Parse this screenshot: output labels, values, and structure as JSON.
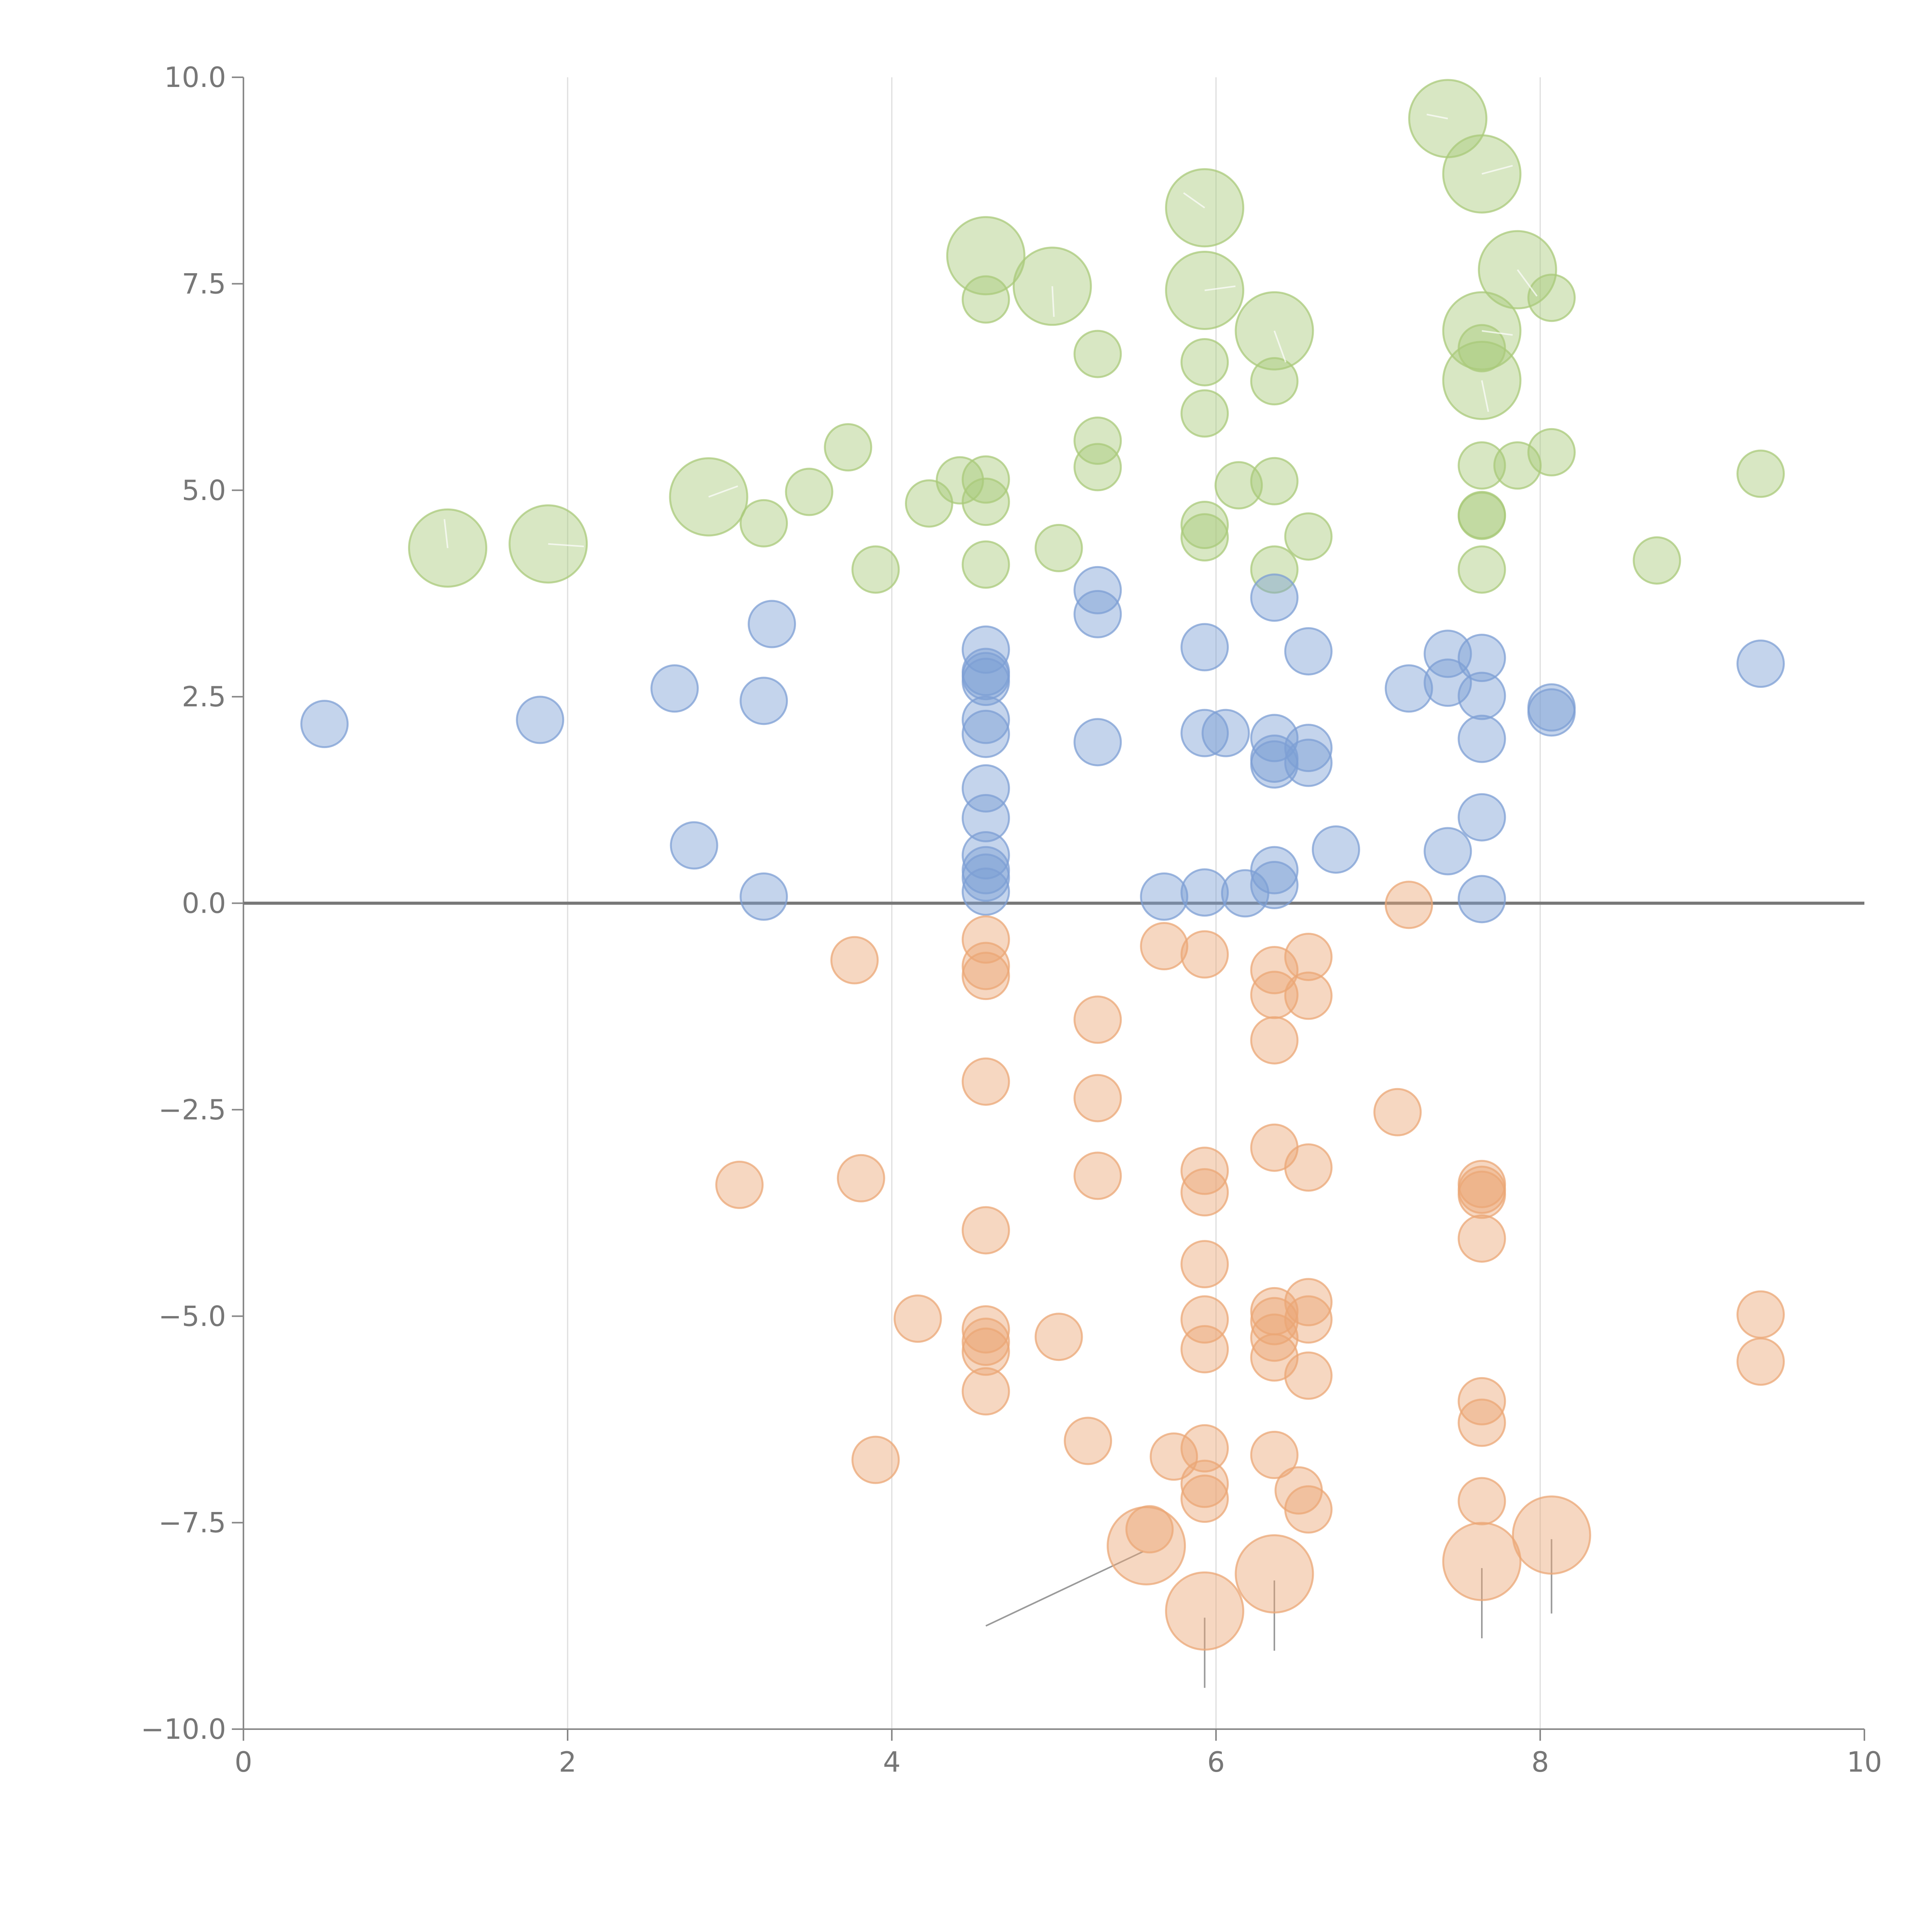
{
  "chart_data": {
    "type": "scatter",
    "title": "",
    "xlabel": "",
    "ylabel": "",
    "xlim": [
      0,
      10
    ],
    "ylim": [
      -10,
      10
    ],
    "x_ticks": [
      0,
      2,
      4,
      6,
      8,
      10
    ],
    "y_ticks": [
      10,
      7.5,
      5,
      2.5,
      0,
      -2.5,
      -5,
      -7.5,
      -10
    ],
    "x_tick_labels": [
      "0",
      "2",
      "4",
      "6",
      "8",
      "10"
    ],
    "y_tick_labels": [
      "10.0",
      "7.5",
      "5.0",
      "2.5",
      "0.0",
      "−2.5",
      "−5.0",
      "−7.5",
      "−10.0"
    ],
    "grid": "vertical",
    "reference_line_y": 0,
    "series": [
      {
        "name": "green",
        "color": "#a9c97a",
        "points": [
          [
            1.26,
            4.3,
            2
          ],
          [
            1.88,
            4.35,
            2
          ],
          [
            2.87,
            4.92,
            2
          ],
          [
            3.21,
            4.6,
            1
          ],
          [
            3.49,
            4.98,
            1
          ],
          [
            3.73,
            5.52,
            1
          ],
          [
            3.9,
            4.04,
            1
          ],
          [
            4.23,
            4.84,
            1
          ],
          [
            4.42,
            5.12,
            1
          ],
          [
            4.58,
            5.13,
            1
          ],
          [
            4.58,
            4.86,
            1
          ],
          [
            4.58,
            4.1,
            1
          ],
          [
            4.58,
            7.31,
            1
          ],
          [
            4.58,
            7.84,
            2
          ],
          [
            4.99,
            7.47,
            2
          ],
          [
            5.03,
            4.3,
            1
          ],
          [
            5.27,
            6.65,
            1
          ],
          [
            5.27,
            5.6,
            1
          ],
          [
            5.27,
            5.28,
            1
          ],
          [
            5.93,
            8.42,
            2
          ],
          [
            5.93,
            7.42,
            2
          ],
          [
            5.93,
            6.55,
            1
          ],
          [
            5.93,
            5.93,
            1
          ],
          [
            5.93,
            4.58,
            1
          ],
          [
            5.93,
            4.43,
            1
          ],
          [
            6.14,
            5.06,
            1
          ],
          [
            6.36,
            6.93,
            2
          ],
          [
            6.36,
            6.32,
            1
          ],
          [
            6.36,
            5.11,
            1
          ],
          [
            6.36,
            4.04,
            1
          ],
          [
            6.57,
            4.44,
            1
          ],
          [
            7.43,
            9.5,
            2
          ],
          [
            7.64,
            8.83,
            2
          ],
          [
            7.64,
            6.93,
            2
          ],
          [
            7.64,
            6.33,
            2
          ],
          [
            7.64,
            6.72,
            1
          ],
          [
            7.64,
            5.3,
            1
          ],
          [
            7.64,
            4.7,
            1
          ],
          [
            7.64,
            4.69,
            1
          ],
          [
            7.64,
            4.04,
            1
          ],
          [
            7.86,
            7.67,
            2
          ],
          [
            7.86,
            5.3,
            1
          ],
          [
            8.07,
            7.33,
            1
          ],
          [
            8.07,
            5.46,
            1
          ],
          [
            8.72,
            4.15,
            1
          ],
          [
            9.36,
            5.2,
            1
          ]
        ]
      },
      {
        "name": "blue",
        "color": "#7d9fd4",
        "points": [
          [
            0.5,
            2.17,
            1
          ],
          [
            1.83,
            2.22,
            1
          ],
          [
            2.66,
            2.6,
            1
          ],
          [
            2.78,
            0.7,
            1
          ],
          [
            3.21,
            2.45,
            1
          ],
          [
            3.21,
            0.08,
            1
          ],
          [
            3.26,
            3.38,
            1
          ],
          [
            4.58,
            3.07,
            1
          ],
          [
            4.58,
            2.8,
            1
          ],
          [
            4.58,
            2.75,
            1
          ],
          [
            4.58,
            2.68,
            1
          ],
          [
            4.58,
            2.22,
            1
          ],
          [
            4.58,
            2.05,
            1
          ],
          [
            4.58,
            1.39,
            1
          ],
          [
            4.58,
            1.03,
            1
          ],
          [
            4.58,
            0.58,
            1
          ],
          [
            4.58,
            0.4,
            1
          ],
          [
            4.58,
            0.31,
            1
          ],
          [
            4.58,
            0.14,
            1
          ],
          [
            5.27,
            3.79,
            1
          ],
          [
            5.27,
            3.5,
            1
          ],
          [
            5.27,
            1.95,
            1
          ],
          [
            5.68,
            0.08,
            1
          ],
          [
            5.93,
            3.1,
            1
          ],
          [
            5.93,
            2.06,
            1
          ],
          [
            5.93,
            0.13,
            1
          ],
          [
            6.06,
            2.06,
            1
          ],
          [
            6.18,
            0.12,
            1
          ],
          [
            6.36,
            3.7,
            1
          ],
          [
            6.36,
            2.0,
            1
          ],
          [
            6.36,
            1.75,
            1
          ],
          [
            6.36,
            1.68,
            1
          ],
          [
            6.36,
            0.4,
            1
          ],
          [
            6.36,
            0.22,
            1
          ],
          [
            6.57,
            3.05,
            1
          ],
          [
            6.57,
            1.88,
            1
          ],
          [
            6.57,
            1.7,
            1
          ],
          [
            6.74,
            0.65,
            1
          ],
          [
            7.19,
            2.6,
            1
          ],
          [
            7.43,
            3.02,
            1
          ],
          [
            7.43,
            2.67,
            1
          ],
          [
            7.43,
            0.63,
            1
          ],
          [
            7.64,
            2.97,
            1
          ],
          [
            7.64,
            2.51,
            1
          ],
          [
            7.64,
            1.99,
            1
          ],
          [
            7.64,
            1.04,
            1
          ],
          [
            7.64,
            0.05,
            1
          ],
          [
            8.07,
            2.37,
            1
          ],
          [
            8.07,
            2.31,
            1
          ],
          [
            9.36,
            2.9,
            1
          ]
        ]
      },
      {
        "name": "orange",
        "color": "#eba775",
        "points": [
          [
            3.06,
            -3.41,
            1
          ],
          [
            3.77,
            -0.69,
            1
          ],
          [
            3.81,
            -3.33,
            1
          ],
          [
            3.9,
            -6.74,
            1
          ],
          [
            4.16,
            -5.03,
            1
          ],
          [
            4.58,
            -0.44,
            1
          ],
          [
            4.58,
            -0.76,
            1
          ],
          [
            4.58,
            -0.88,
            1
          ],
          [
            4.58,
            -2.16,
            1
          ],
          [
            4.58,
            -3.96,
            1
          ],
          [
            4.58,
            -5.16,
            1
          ],
          [
            4.58,
            -5.31,
            1
          ],
          [
            4.58,
            -5.43,
            1
          ],
          [
            4.58,
            -5.91,
            1
          ],
          [
            5.03,
            -5.25,
            1
          ],
          [
            5.21,
            -6.51,
            1
          ],
          [
            5.27,
            -1.41,
            1
          ],
          [
            5.27,
            -2.36,
            1
          ],
          [
            5.27,
            -3.3,
            1
          ],
          [
            5.57,
            -7.78,
            2
          ],
          [
            5.59,
            -7.58,
            1
          ],
          [
            5.68,
            -0.52,
            1
          ],
          [
            5.74,
            -6.7,
            1
          ],
          [
            5.93,
            -0.62,
            1
          ],
          [
            5.93,
            -3.24,
            1
          ],
          [
            5.93,
            -3.5,
            1
          ],
          [
            5.93,
            -4.37,
            1
          ],
          [
            5.93,
            -5.04,
            1
          ],
          [
            5.93,
            -5.4,
            1
          ],
          [
            5.93,
            -6.6,
            1
          ],
          [
            5.93,
            -7.03,
            1
          ],
          [
            5.93,
            -7.21,
            1
          ],
          [
            5.93,
            -8.57,
            2
          ],
          [
            6.36,
            -0.81,
            1
          ],
          [
            6.36,
            -1.11,
            1
          ],
          [
            6.36,
            -1.66,
            1
          ],
          [
            6.36,
            -2.96,
            1
          ],
          [
            6.36,
            -4.94,
            1
          ],
          [
            6.36,
            -5.06,
            1
          ],
          [
            6.36,
            -5.26,
            1
          ],
          [
            6.36,
            -5.5,
            1
          ],
          [
            6.36,
            -6.68,
            1
          ],
          [
            6.36,
            -8.12,
            2
          ],
          [
            6.51,
            -7.11,
            1
          ],
          [
            6.57,
            -0.65,
            1
          ],
          [
            6.57,
            -1.12,
            1
          ],
          [
            6.57,
            -3.2,
            1
          ],
          [
            6.57,
            -4.83,
            1
          ],
          [
            6.57,
            -5.04,
            1
          ],
          [
            6.57,
            -5.72,
            1
          ],
          [
            6.57,
            -7.34,
            1
          ],
          [
            7.12,
            -2.53,
            1
          ],
          [
            7.19,
            -0.02,
            1
          ],
          [
            7.64,
            -3.4,
            1
          ],
          [
            7.64,
            -3.47,
            1
          ],
          [
            7.64,
            -3.53,
            1
          ],
          [
            7.64,
            -4.06,
            1
          ],
          [
            7.64,
            -6.03,
            1
          ],
          [
            7.64,
            -6.29,
            1
          ],
          [
            7.64,
            -7.24,
            1
          ],
          [
            7.64,
            -7.97,
            2
          ],
          [
            8.07,
            -7.65,
            2
          ],
          [
            9.36,
            -4.98,
            1
          ],
          [
            9.36,
            -5.55,
            1
          ]
        ]
      }
    ],
    "size_radius_px": {
      "1": 60,
      "2": 100
    },
    "leader_lines": [
      {
        "from": [
          4.58,
          -8.75
        ],
        "to": [
          5.55,
          -7.85
        ],
        "color": "#9a9a9a"
      },
      {
        "from": [
          5.93,
          -8.65
        ],
        "to": [
          5.93,
          -9.5
        ],
        "color": "#9a9a9a"
      },
      {
        "from": [
          6.36,
          -8.2
        ],
        "to": [
          6.36,
          -9.05
        ],
        "color": "#9a9a9a"
      },
      {
        "from": [
          7.64,
          -8.05
        ],
        "to": [
          7.64,
          -8.9
        ],
        "color": "#9a9a9a"
      },
      {
        "from": [
          8.07,
          -7.7
        ],
        "to": [
          8.07,
          -8.6
        ],
        "color": "#9a9a9a"
      },
      {
        "from": [
          1.26,
          4.3
        ],
        "to": [
          1.24,
          4.65
        ],
        "color": "#ffffff"
      },
      {
        "from": [
          1.88,
          4.35
        ],
        "to": [
          2.1,
          4.32
        ],
        "color": "#ffffff"
      },
      {
        "from": [
          2.87,
          4.92
        ],
        "to": [
          3.05,
          5.05
        ],
        "color": "#ffffff"
      },
      {
        "from": [
          4.99,
          7.47
        ],
        "to": [
          5.0,
          7.1
        ],
        "color": "#ffffff"
      },
      {
        "from": [
          5.93,
          8.42
        ],
        "to": [
          5.8,
          8.6
        ],
        "color": "#ffffff"
      },
      {
        "from": [
          5.93,
          7.42
        ],
        "to": [
          6.12,
          7.47
        ],
        "color": "#ffffff"
      },
      {
        "from": [
          6.36,
          6.93
        ],
        "to": [
          6.43,
          6.55
        ],
        "color": "#ffffff"
      },
      {
        "from": [
          7.43,
          9.5
        ],
        "to": [
          7.3,
          9.55
        ],
        "color": "#ffffff"
      },
      {
        "from": [
          7.64,
          8.83
        ],
        "to": [
          7.83,
          8.93
        ],
        "color": "#ffffff"
      },
      {
        "from": [
          7.64,
          6.93
        ],
        "to": [
          7.83,
          6.88
        ],
        "color": "#ffffff"
      },
      {
        "from": [
          7.64,
          6.33
        ],
        "to": [
          7.68,
          5.95
        ],
        "color": "#ffffff"
      },
      {
        "from": [
          7.86,
          7.67
        ],
        "to": [
          7.98,
          7.35
        ],
        "color": "#ffffff"
      }
    ]
  }
}
